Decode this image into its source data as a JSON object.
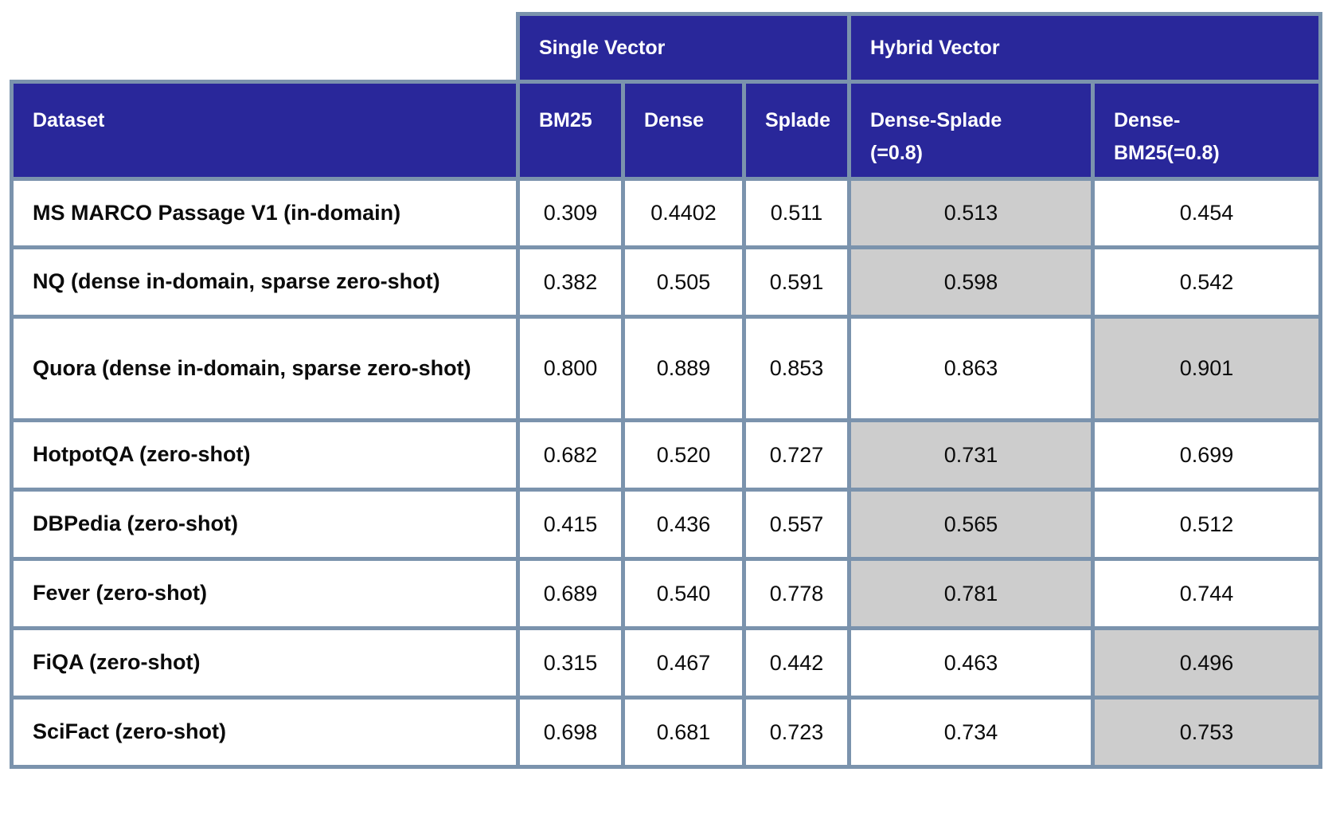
{
  "colors": {
    "header_bg": "#29279A",
    "header_text": "#FFFFFF",
    "grid_border": "#7B93AD",
    "highlight_bg": "#CDCDCD",
    "body_text": "#0B0B0B",
    "page_bg": "#FFFFFF"
  },
  "chart_data": {
    "type": "table",
    "column_groups": [
      {
        "label": "Single Vector",
        "span": 3
      },
      {
        "label": "Hybrid Vector",
        "span": 2
      }
    ],
    "columns": [
      "Dataset",
      "BM25",
      "Dense",
      "Splade",
      "Dense-Splade (=0.8)",
      "Dense-BM25(=0.8)"
    ],
    "column_display": [
      [
        "Dataset"
      ],
      [
        "BM25"
      ],
      [
        "Dense"
      ],
      [
        "Splade"
      ],
      [
        "Dense-Splade",
        "(=0.8)"
      ],
      [
        "Dense-",
        "BM25(=0.8)"
      ]
    ],
    "rows": [
      {
        "dataset": "MS MARCO Passage V1 (in-domain)",
        "values": [
          "0.309",
          "0.4402",
          "0.511",
          "0.513",
          "0.454"
        ],
        "highlight_index": 3
      },
      {
        "dataset": "NQ (dense in-domain, sparse zero-shot)",
        "values": [
          "0.382",
          "0.505",
          "0.591",
          "0.598",
          "0.542"
        ],
        "highlight_index": 3
      },
      {
        "dataset": "Quora (dense in-domain, sparse zero-shot)",
        "values": [
          "0.800",
          "0.889",
          "0.853",
          "0.863",
          "0.901"
        ],
        "highlight_index": 4
      },
      {
        "dataset": "HotpotQA (zero-shot)",
        "values": [
          "0.682",
          "0.520",
          "0.727",
          "0.731",
          "0.699"
        ],
        "highlight_index": 3
      },
      {
        "dataset": "DBPedia (zero-shot)",
        "values": [
          "0.415",
          "0.436",
          "0.557",
          "0.565",
          "0.512"
        ],
        "highlight_index": 3
      },
      {
        "dataset": "Fever (zero-shot)",
        "values": [
          "0.689",
          "0.540",
          "0.778",
          "0.781",
          "0.744"
        ],
        "highlight_index": 3
      },
      {
        "dataset": "FiQA (zero-shot)",
        "values": [
          "0.315",
          "0.467",
          "0.442",
          "0.463",
          "0.496"
        ],
        "highlight_index": 4
      },
      {
        "dataset": "SciFact (zero-shot)",
        "values": [
          "0.698",
          "0.681",
          "0.723",
          "0.734",
          "0.753"
        ],
        "highlight_index": 4
      }
    ]
  }
}
